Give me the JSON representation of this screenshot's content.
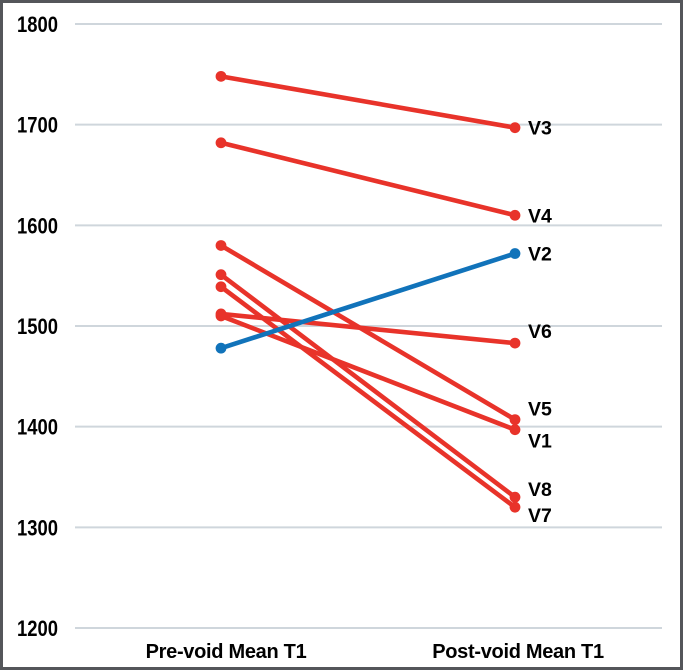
{
  "chart_data": {
    "type": "line",
    "subtype": "slopegraph-paired-means",
    "title": "",
    "xlabel": "",
    "ylabel": "",
    "categories": [
      "Pre-void Mean T1",
      "Post-void Mean T1"
    ],
    "series": [
      {
        "name": "V1",
        "values": [
          1510,
          1397
        ],
        "color_key": "red",
        "label_dy": 11
      },
      {
        "name": "V2",
        "values": [
          1478,
          1572
        ],
        "color_key": "blue",
        "label_dy": 0
      },
      {
        "name": "V3",
        "values": [
          1748,
          1697
        ],
        "color_key": "red",
        "label_dy": 0
      },
      {
        "name": "V4",
        "values": [
          1682,
          1610
        ],
        "color_key": "red",
        "label_dy": 0
      },
      {
        "name": "V5",
        "values": [
          1580,
          1407
        ],
        "color_key": "red",
        "label_dy": -11
      },
      {
        "name": "V6",
        "values": [
          1512,
          1483
        ],
        "color_key": "red",
        "label_dy": -12
      },
      {
        "name": "V7",
        "values": [
          1539,
          1320
        ],
        "color_key": "red",
        "label_dy": 8
      },
      {
        "name": "V8",
        "values": [
          1551,
          1330
        ],
        "color_key": "red",
        "label_dy": -8
      }
    ],
    "yticks": [
      "1800",
      "1700",
      "1600",
      "1500",
      "1400",
      "1300",
      "1200"
    ],
    "ylim": [
      1200,
      1800
    ],
    "grid": true,
    "legend": "none",
    "marker": "dot-both-ends",
    "colors": {
      "red": "#e8332a",
      "blue": "#1173ba",
      "gridline": "#cfd6dc",
      "border": "#54565a",
      "text": "#000000"
    }
  }
}
